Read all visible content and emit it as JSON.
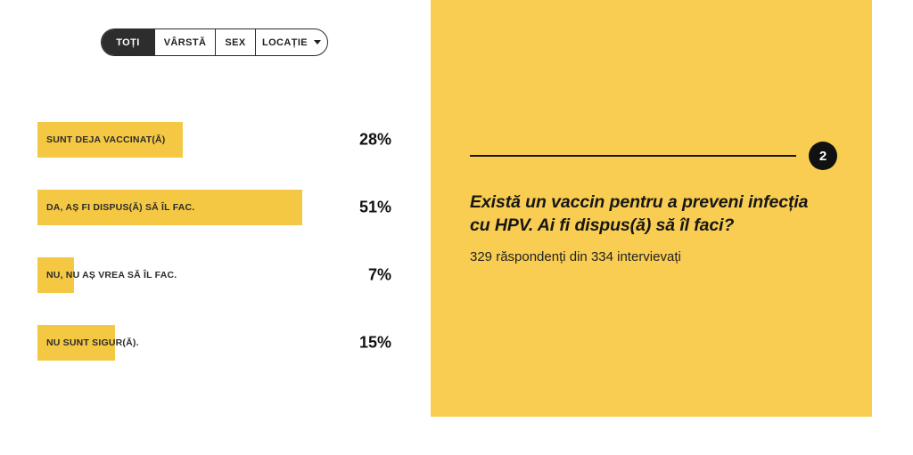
{
  "tabs": {
    "items": [
      {
        "label": "TOȚI",
        "active": true,
        "has_dropdown": false
      },
      {
        "label": "VÂRSTĂ",
        "active": false,
        "has_dropdown": false
      },
      {
        "label": "SEX",
        "active": false,
        "has_dropdown": false
      },
      {
        "label": "LOCAȚIE",
        "active": false,
        "has_dropdown": true
      }
    ]
  },
  "chart_data": {
    "type": "bar",
    "orientation": "horizontal",
    "categories": [
      "SUNT DEJA VACCINAT(Ă)",
      "DA, AȘ FI DISPUS(Ă) SĂ ÎL FAC.",
      "NU, NU AȘ VREA SĂ ÎL FAC.",
      "NU SUNT SIGUR(Ă)."
    ],
    "values": [
      28,
      51,
      7,
      15
    ],
    "value_labels": [
      "28%",
      "51%",
      "7%",
      "15%"
    ],
    "unit": "%",
    "xlim": [
      0,
      100
    ],
    "bar_color": "#F5C843",
    "grid": false,
    "legend": false,
    "title": ""
  },
  "panel": {
    "number": "2",
    "question_lines": [
      "Există un vaccin pentru a preveni infecția",
      "cu HPV. Ai fi dispus(ă) să îl faci?"
    ],
    "question": "Există un vaccin pentru a preveni infecția cu HPV. Ai fi dispus(ă) să îl faci?",
    "respondents": "329 răspondenți din 334 intervievați",
    "background": "#F9CD51"
  },
  "colors": {
    "active_tab_bg": "#2D2D2D",
    "active_tab_text": "#FFFFFF",
    "badge_bg": "#111111",
    "badge_text": "#FFFFFF"
  }
}
